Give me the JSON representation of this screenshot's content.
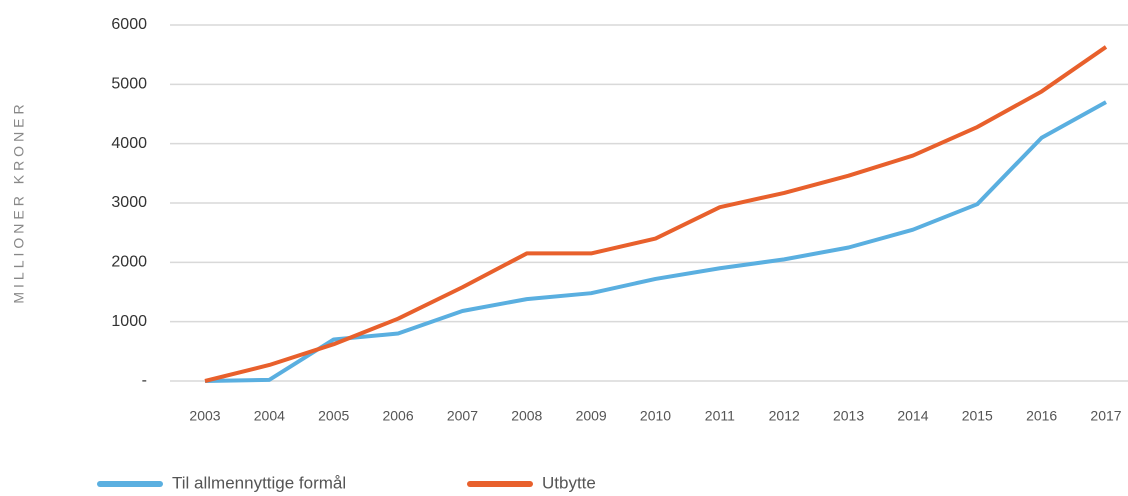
{
  "chart_data": {
    "type": "line",
    "y_label": "MILLIONER KRONER",
    "categories": [
      "2003",
      "2004",
      "2005",
      "2006",
      "2007",
      "2008",
      "2009",
      "2010",
      "2011",
      "2012",
      "2013",
      "2014",
      "2015",
      "2016",
      "2017"
    ],
    "series": [
      {
        "name": "Til allmennyttige formål",
        "color": "#5aafe0",
        "values": [
          0,
          20,
          700,
          800,
          1180,
          1380,
          1480,
          1720,
          1900,
          2050,
          2250,
          2550,
          2980,
          4100,
          4700
        ]
      },
      {
        "name": "Utbytte",
        "color": "#e8602c",
        "values": [
          0,
          270,
          620,
          1050,
          1580,
          2150,
          2150,
          2400,
          2930,
          3170,
          3460,
          3800,
          4280,
          4880,
          5630
        ]
      }
    ],
    "ylim": [
      0,
      6000
    ],
    "yticks": [
      {
        "value": 0,
        "label": "-"
      },
      1000,
      2000,
      3000,
      4000,
      5000,
      6000
    ],
    "grid": true,
    "legend": "bottom"
  }
}
